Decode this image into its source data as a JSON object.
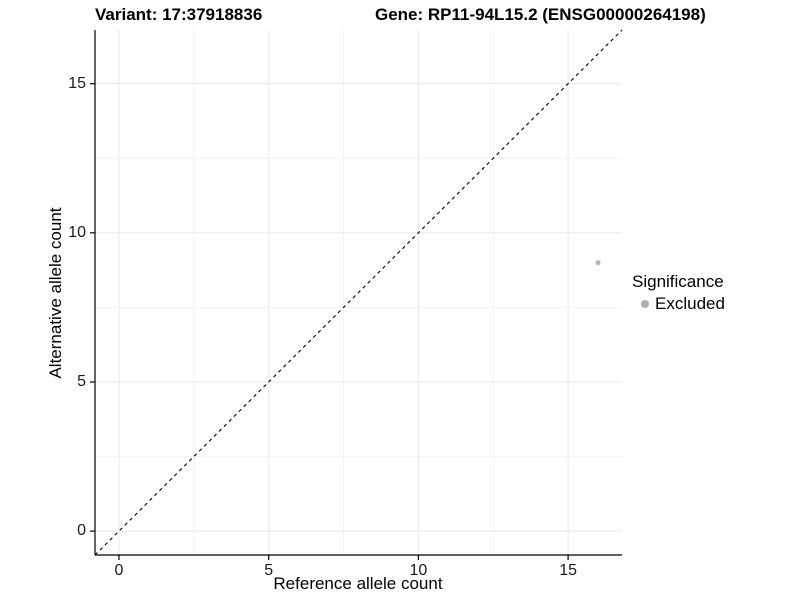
{
  "titles": {
    "variant": "Variant: 17:37918836",
    "gene": "Gene: RP11-94L15.2 (ENSG00000264198)"
  },
  "axes": {
    "x": {
      "label": "Reference allele count",
      "tick_labels": [
        "0",
        "5",
        "10",
        "15"
      ]
    },
    "y": {
      "label": "Alternative allele count",
      "tick_labels": [
        "0",
        "5",
        "10",
        "15"
      ]
    }
  },
  "legend": {
    "title": "Significance",
    "items": [
      {
        "label": "Excluded",
        "color": "#aeaeae",
        "marker": "circle"
      }
    ]
  },
  "colors": {
    "point": "#b5b5b5",
    "grid_major": "#e8e8e8",
    "grid_minor": "#f3f3f3",
    "axis_line": "#000000",
    "reference_line": "#000000",
    "background": "#ffffff"
  },
  "chart_data": {
    "type": "scatter",
    "title_left": "Variant: 17:37918836",
    "title_right": "Gene: RP11-94L15.2 (ENSG00000264198)",
    "xlabel": "Reference allele count",
    "ylabel": "Alternative allele count",
    "xlim": [
      -0.8,
      16.8
    ],
    "ylim": [
      -0.8,
      16.8
    ],
    "x_major_ticks": [
      0,
      5,
      10,
      15
    ],
    "y_major_ticks": [
      0,
      5,
      10,
      15
    ],
    "x_minor_ticks": [
      2.5,
      7.5,
      12.5
    ],
    "y_minor_ticks": [
      2.5,
      7.5,
      12.5
    ],
    "grid": true,
    "legend_title": "Significance",
    "legend_position": "right",
    "series": [
      {
        "name": "Excluded",
        "color": "#b5b5b5",
        "marker": "circle",
        "points": [
          {
            "x": 16,
            "y": 9
          }
        ]
      }
    ],
    "reference_line": {
      "type": "identity",
      "style": "dashed",
      "from": [
        -0.8,
        -0.8
      ],
      "to": [
        16.8,
        16.8
      ]
    }
  }
}
